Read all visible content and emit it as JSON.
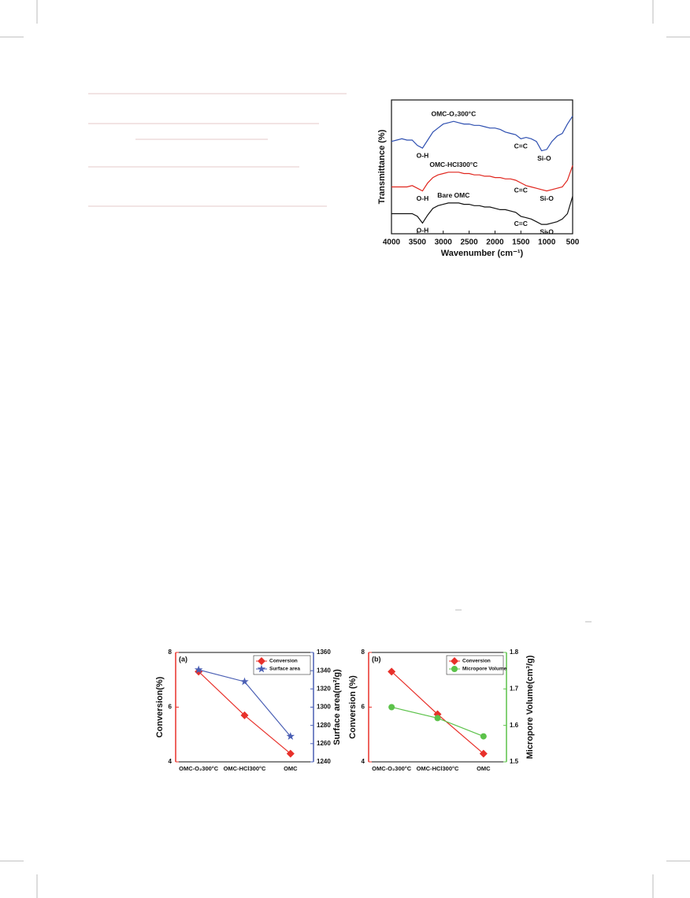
{
  "chart_data": [
    {
      "type": "spectrum",
      "x_label": "Wavenumber (cm⁻¹)",
      "y_label": "Transmittance (%)",
      "x": [
        4000,
        3900,
        3800,
        3700,
        3600,
        3500,
        3400,
        3300,
        3200,
        3100,
        3000,
        2900,
        2800,
        2700,
        2600,
        2500,
        2400,
        2300,
        2200,
        2100,
        2000,
        1900,
        1800,
        1700,
        1600,
        1500,
        1400,
        1300,
        1200,
        1100,
        1000,
        900,
        800,
        700,
        600,
        500
      ],
      "xlim": [
        4000,
        500
      ],
      "xticks": [
        4000,
        3500,
        3000,
        2500,
        2000,
        1500,
        1000,
        500
      ],
      "ylim": [
        0,
        100
      ],
      "series": [
        {
          "name": "OMC-O₂300°C",
          "color": "#2e4fb0",
          "values": [
            69,
            70,
            71,
            70,
            70,
            66,
            64,
            70,
            76,
            79,
            82,
            83,
            84,
            83,
            82,
            82,
            81,
            81,
            80,
            79,
            79,
            78,
            76,
            75,
            74,
            71,
            72,
            71,
            69,
            62,
            63,
            69,
            73,
            75,
            82,
            88
          ],
          "annotations": [
            {
              "text": "O-H",
              "x": 3400
            },
            {
              "text": "C=C",
              "x": 1500
            },
            {
              "text": "Si-O",
              "x": 1050
            }
          ]
        },
        {
          "name": "OMC-HCl300°C",
          "color": "#e0261e",
          "values": [
            35,
            35,
            35,
            35,
            36,
            34,
            32,
            38,
            42,
            44,
            45,
            46,
            46,
            46,
            45,
            45,
            44,
            44,
            43,
            43,
            42,
            42,
            41,
            41,
            40,
            38,
            36,
            35,
            34,
            33,
            32,
            33,
            34,
            35,
            40,
            51
          ],
          "annotations": [
            {
              "text": "O-H",
              "x": 3400
            },
            {
              "text": "C=C",
              "x": 1500
            },
            {
              "text": "Si-O",
              "x": 1000
            }
          ]
        },
        {
          "name": "Bare OMC",
          "color": "#111111",
          "values": [
            15,
            15,
            15,
            15,
            15,
            13,
            8,
            14,
            19,
            21,
            22,
            23,
            23,
            23,
            22,
            22,
            21,
            21,
            20,
            20,
            19,
            18,
            18,
            17,
            16,
            13,
            12,
            11,
            9,
            7,
            7,
            8,
            9,
            11,
            15,
            28
          ],
          "annotations": [
            {
              "text": "O-H",
              "x": 3400
            },
            {
              "text": "C=C",
              "x": 1500
            },
            {
              "text": "Si-O",
              "x": 1000
            }
          ]
        }
      ]
    },
    {
      "type": "dual",
      "panel": "(a)",
      "categories": [
        "OMC-O₂300°C",
        "OMC-HCl300°C",
        "OMC"
      ],
      "y_label": "Conversion(%)",
      "y2_label": "Surface area(m²/g)",
      "ylim": [
        4,
        8
      ],
      "yticks": [
        4,
        6,
        8
      ],
      "y2lim": [
        1240,
        1360
      ],
      "y2ticks": [
        1240,
        1260,
        1280,
        1300,
        1320,
        1340,
        1360
      ],
      "legend": "upper right",
      "series": [
        {
          "name": "Conversion",
          "color": "#e8302a",
          "marker": "diamond",
          "values": [
            7.3,
            5.7,
            4.3
          ]
        },
        {
          "name": "Surface area",
          "color": "#4a5fb4",
          "marker": "star",
          "axis": "y2",
          "values": [
            1341,
            1328,
            1268
          ]
        }
      ]
    },
    {
      "type": "dual",
      "panel": "(b)",
      "categories": [
        "OMC-O₂300°C",
        "OMC-HCl300°C",
        "OMC"
      ],
      "y_label": "Conversion (%)",
      "y2_label": "Micropore Volume(cm³/g)",
      "ylim": [
        4,
        8
      ],
      "yticks": [
        4,
        6,
        8
      ],
      "y2lim": [
        1.5,
        1.8
      ],
      "y2ticks": [
        1.5,
        1.6,
        1.7,
        1.8
      ],
      "legend": "upper right",
      "series": [
        {
          "name": "Conversion",
          "color": "#e8302a",
          "marker": "diamond",
          "values": [
            7.3,
            5.74,
            4.3
          ]
        },
        {
          "name": "Micropore Volume",
          "color": "#5cc24a",
          "marker": "circle",
          "axis": "y2",
          "values": [
            1.65,
            1.62,
            1.57
          ]
        }
      ]
    }
  ]
}
